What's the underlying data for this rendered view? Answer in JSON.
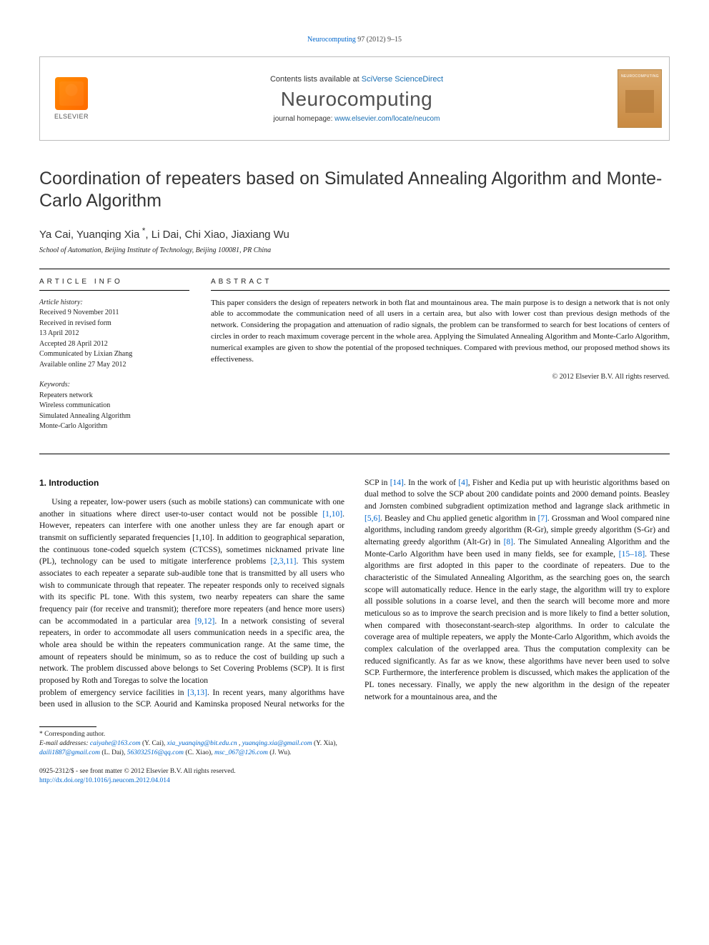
{
  "citation": {
    "journal_link_text": "Neurocomputing ",
    "vol_pages": "97 (2012) 9–15"
  },
  "header": {
    "contents_prefix": "Contents lists available at ",
    "contents_link": "SciVerse ScienceDirect",
    "journal_name": "Neurocomputing",
    "homepage_prefix": "journal homepage: ",
    "homepage_link": "www.elsevier.com/locate/neucom",
    "publisher_name": "ELSEVIER",
    "cover_label": "NEUROCOMPUTING"
  },
  "title": "Coordination of repeaters based on Simulated Annealing Algorithm and Monte-Carlo Algorithm",
  "authors": "Ya Cai, Yuanqing Xia *, Li Dai, Chi Xiao, Jiaxiang Wu",
  "affiliation": "School of Automation, Beijing Institute of Technology, Beijing 100081, PR China",
  "article_info": {
    "label": "ARTICLE INFO",
    "history_header": "Article history:",
    "history": [
      "Received 9 November 2011",
      "Received in revised form",
      "13 April 2012",
      "Accepted 28 April 2012",
      "Communicated by Lixian Zhang",
      "Available online 27 May 2012"
    ],
    "keywords_header": "Keywords:",
    "keywords": [
      "Repeaters network",
      "Wireless communication",
      "Simulated Annealing Algorithm",
      "Monte-Carlo Algorithm"
    ]
  },
  "abstract": {
    "label": "ABSTRACT",
    "text": "This paper considers the design of repeaters network in both flat and mountainous area. The main purpose is to design a network that is not only able to accommodate the communication need of all users in a certain area, but also with lower cost than previous design methods of the network. Considering the propagation and attenuation of radio signals, the problem can be transformed to search for best locations of centers of circles in order to reach maximum coverage percent in the whole area. Applying the Simulated Annealing Algorithm and Monte-Carlo Algorithm, numerical examples are given to show the potential of the proposed techniques. Compared with previous method, our proposed method shows its effectiveness.",
    "copyright": "© 2012 Elsevier B.V. All rights reserved."
  },
  "body": {
    "section_heading": "1. Introduction",
    "col1_para": "Using a repeater, low-power users (such as mobile stations) can communicate with one another in situations where direct user-to-user contact would not be possible [1,10]. However, repeaters can interfere with one another unless they are far enough apart or transmit on sufficiently separated frequencies [1,10]. In addition to geographical separation, the continuous tone-coded squelch system (CTCSS), sometimes nicknamed private line (PL), technology can be used to mitigate interference problems [2,3,11]. This system associates to each repeater a separate sub-audible tone that is transmitted by all users who wish to communicate through that repeater. The repeater responds only to received signals with its specific PL tone. With this system, two nearby repeaters can share the same frequency pair (for receive and transmit); therefore more repeaters (and hence more users) can be accommodated in a particular area [9,12]. In a network consisting of several repeaters, in order to accommodate all users communication needs in a specific area, the whole area should be within the repeaters communication range. At the same time, the amount of repeaters should be minimum, so as to reduce the cost of building up such a network. The problem discussed above belongs to Set Covering Problems (SCP). It is first proposed by Roth and Toregas to solve the location",
    "col2_para": "problem of emergency service facilities in [3,13]. In recent years, many algorithms have been used in allusion to the SCP. Aourid and Kaminska proposed Neural networks for the SCP in [14]. In the work of [4], Fisher and Kedia put up with heuristic algorithms based on dual method to solve the SCP about 200 candidate points and 2000 demand points. Beasley and Jornsten combined subgradient optimization method and lagrange slack arithmetic in [5,6]. Beasley and Chu applied genetic algorithm in [7]. Grossman and Wool compared nine algorithms, including random greedy algorithm (R-Gr), simple greedy algorithm (S-Gr) and alternating greedy algorithm (Alt-Gr) in [8]. The Simulated Annealing Algorithm and the Monte-Carlo Algorithm have been used in many fields, see for example, [15–18]. These algorithms are first adopted in this paper to the coordinate of repeaters. Due to the characteristic of the Simulated Annealing Algorithm, as the searching goes on, the search scope will automatically reduce. Hence in the early stage, the algorithm will try to explore all possible solutions in a coarse level, and then the search will become more and more meticulous so as to improve the search precision and is more likely to find a better solution, when compared with thoseconstant-search-step algorithms. In order to calculate the coverage area of multiple repeaters, we apply the Monte-Carlo Algorithm, which avoids the complex calculation of the overlapped area. Thus the computation complexity can be reduced significantly. As far as we know, these algorithms have never been used to solve SCP. Furthermore, the interference problem is discussed, which makes the application of the PL tones necessary. Finally, we apply the new algorithm in the design of the repeater network for a mountainous area, and the",
    "refs_col1": [
      "[1,10]",
      "[1,10]",
      "[2,3,11]",
      "[9,12]"
    ],
    "refs_col2": [
      "[3,13]",
      "[14]",
      "[4]",
      "[5,6]",
      "[7]",
      "[8]",
      "[15–18]"
    ]
  },
  "footnotes": {
    "corr_label": "* Corresponding author.",
    "emails_label": "E-mail addresses:",
    "emails": [
      {
        "addr": "caiyahe@163.com",
        "who": "(Y. Cai)"
      },
      {
        "addr": "xia_yuanqing@bit.edu.cn",
        "who": ""
      },
      {
        "addr": "yuanqing.xia@gmail.com",
        "who": "(Y. Xia)"
      },
      {
        "addr": "daili1887@gmail.com",
        "who": "(L. Dai)"
      },
      {
        "addr": "563032516@qq.com",
        "who": "(C. Xiao)"
      },
      {
        "addr": "msc_067@126.com",
        "who": "(J. Wu)"
      }
    ]
  },
  "footer": {
    "issn_line": "0925-2312/$ - see front matter © 2012 Elsevier B.V. All rights reserved.",
    "doi_link": "http://dx.doi.org/10.1016/j.neucom.2012.04.014"
  },
  "colors": {
    "link": "#0066cc",
    "text": "#111111",
    "muted": "#555555",
    "border": "#bbbbbb",
    "publisher_orange": "#ff6a00",
    "cover_bg": "#c98a42"
  },
  "typography": {
    "title_fontsize": 25,
    "journal_fontsize": 28,
    "body_fontsize": 11.5,
    "abstract_fontsize": 11,
    "meta_fontsize": 10,
    "footnote_fontsize": 9.5
  }
}
